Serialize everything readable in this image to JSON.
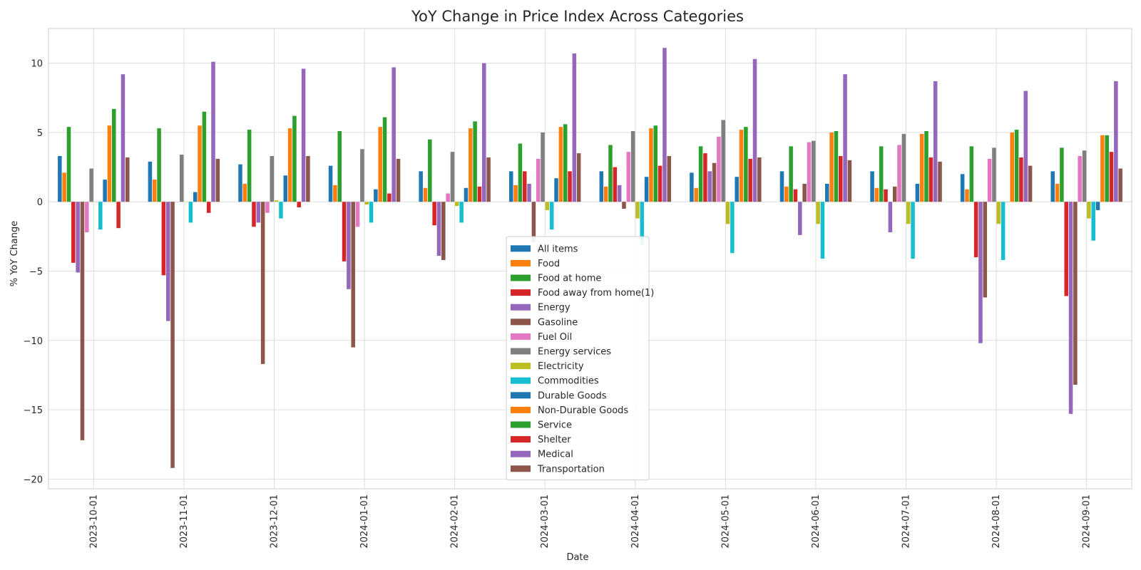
{
  "chart_data": {
    "type": "bar",
    "title": "YoY Change in Price Index Across Categories",
    "xlabel": "Date",
    "ylabel": "% YoY Change",
    "ylim": [
      -20.7,
      12.5
    ],
    "yticks": [
      -20,
      -15,
      -10,
      -5,
      0,
      5,
      10
    ],
    "ytick_labels": [
      "−20",
      "−15",
      "−10",
      "−5",
      "0",
      "5",
      "10"
    ],
    "grid": true,
    "legend_position": "lower-center",
    "categories": [
      "2023-10-01",
      "2023-11-01",
      "2023-12-01",
      "2024-01-01",
      "2024-02-01",
      "2024-03-01",
      "2024-04-01",
      "2024-05-01",
      "2024-06-01",
      "2024-07-01",
      "2024-08-01",
      "2024-09-01"
    ],
    "series": [
      {
        "name": "All items",
        "color": "#1f77b4",
        "values": [
          3.3,
          2.9,
          2.7,
          2.6,
          2.2,
          2.2,
          2.2,
          2.1,
          2.2,
          2.2,
          2.0,
          2.2
        ]
      },
      {
        "name": "Food",
        "color": "#ff7f0e",
        "values": [
          2.1,
          1.6,
          1.3,
          1.2,
          1.0,
          1.2,
          1.1,
          1.0,
          1.1,
          1.0,
          0.9,
          1.3
        ]
      },
      {
        "name": "Food at home",
        "color": "#2ca02c",
        "values": [
          5.4,
          5.3,
          5.2,
          5.1,
          4.5,
          4.2,
          4.1,
          4.0,
          4.0,
          4.0,
          4.0,
          3.9
        ]
      },
      {
        "name": "Food away from home(1)",
        "color": "#d62728",
        "values": [
          -4.4,
          -5.3,
          -1.8,
          -4.3,
          -1.7,
          2.2,
          2.5,
          3.5,
          0.9,
          0.9,
          -4.0,
          -6.8
        ]
      },
      {
        "name": "Energy",
        "color": "#9467bd",
        "values": [
          -5.1,
          -8.6,
          -1.5,
          -6.3,
          -3.9,
          1.3,
          1.2,
          2.2,
          -2.4,
          -2.2,
          -10.2,
          -15.3
        ]
      },
      {
        "name": "Gasoline",
        "color": "#8c564b",
        "values": [
          -17.2,
          -19.2,
          -11.7,
          -10.5,
          -4.2,
          -2.9,
          -0.5,
          2.8,
          1.3,
          1.1,
          -6.9,
          -13.2
        ]
      },
      {
        "name": "Fuel Oil",
        "color": "#e377c2",
        "values": [
          -2.2,
          0.0,
          -0.8,
          -1.8,
          0.6,
          3.1,
          3.6,
          4.7,
          4.3,
          4.1,
          3.1,
          3.3
        ]
      },
      {
        "name": "Energy services",
        "color": "#7f7f7f",
        "values": [
          2.4,
          3.4,
          3.3,
          3.8,
          3.6,
          5.0,
          5.1,
          5.9,
          4.4,
          4.9,
          3.9,
          3.7
        ]
      },
      {
        "name": "Electricity",
        "color": "#bcbd22",
        "values": [
          0.0,
          0.0,
          0.1,
          -0.2,
          -0.3,
          -0.6,
          -1.2,
          -1.6,
          -1.6,
          -1.6,
          -1.6,
          -1.2
        ]
      },
      {
        "name": "Commodities",
        "color": "#17becf",
        "values": [
          -2.0,
          -1.5,
          -1.2,
          -1.5,
          -1.5,
          -2.0,
          -3.1,
          -3.7,
          -4.1,
          -4.1,
          -4.2,
          -2.8
        ]
      },
      {
        "name": "Durable Goods",
        "color": "#1f77b4",
        "values": [
          1.6,
          0.7,
          1.9,
          0.9,
          1.0,
          1.7,
          1.8,
          1.8,
          1.3,
          1.3,
          0.0,
          -0.6
        ]
      },
      {
        "name": "Non-Durable Goods",
        "color": "#ff7f0e",
        "values": [
          5.5,
          5.5,
          5.3,
          5.4,
          5.3,
          5.4,
          5.3,
          5.2,
          5.0,
          4.9,
          5.0,
          4.8
        ]
      },
      {
        "name": "Service",
        "color": "#2ca02c",
        "values": [
          6.7,
          6.5,
          6.2,
          6.1,
          5.8,
          5.6,
          5.5,
          5.4,
          5.1,
          5.1,
          5.2,
          4.8
        ]
      },
      {
        "name": "Shelter",
        "color": "#d62728",
        "values": [
          -1.9,
          -0.8,
          -0.4,
          0.6,
          1.1,
          2.2,
          2.6,
          3.1,
          3.3,
          3.2,
          3.2,
          3.6
        ]
      },
      {
        "name": "Medical",
        "color": "#9467bd",
        "values": [
          9.2,
          10.1,
          9.6,
          9.7,
          10.0,
          10.7,
          11.1,
          10.3,
          9.2,
          8.7,
          8.0,
          8.7
        ]
      },
      {
        "name": "Transportation",
        "color": "#8c564b",
        "values": [
          3.2,
          3.1,
          3.3,
          3.1,
          3.2,
          3.5,
          3.3,
          3.2,
          3.0,
          2.9,
          2.6,
          2.4
        ]
      }
    ]
  }
}
